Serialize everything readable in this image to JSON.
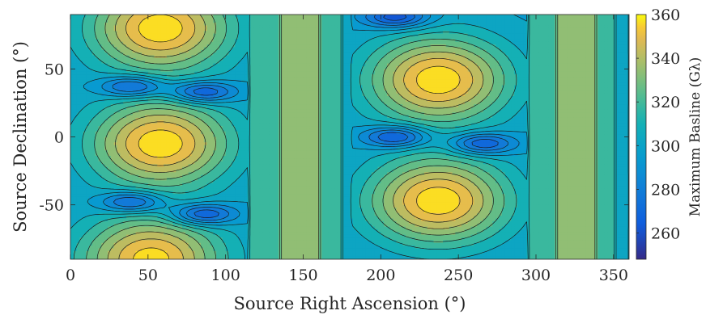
{
  "chart_data": {
    "type": "contour",
    "title": "",
    "xlabel": "Source Right Ascension (°)",
    "ylabel": "Source Declination (°)",
    "colorbar_label": "Maximum Basline (Gλ)",
    "xlim": [
      0,
      360
    ],
    "ylim": [
      -90,
      90
    ],
    "xticks": [
      0,
      50,
      100,
      150,
      200,
      250,
      300,
      350
    ],
    "yticks": [
      -50,
      0,
      50
    ],
    "colorbar_range": [
      248,
      360
    ],
    "colorbar_ticks": [
      260,
      280,
      300,
      320,
      340,
      360
    ],
    "colormap": "parula",
    "contour_levels": [
      258,
      266,
      274,
      282,
      290,
      298,
      306,
      314,
      322,
      330,
      338,
      346,
      354
    ],
    "bands_by_ra": [
      {
        "ra": [
          115,
          135
        ],
        "value": 316
      },
      {
        "ra": [
          135,
          162
        ],
        "value": 330
      },
      {
        "ra": [
          162,
          175
        ],
        "value": 316
      },
      {
        "ra": [
          175,
          181
        ],
        "value": 304
      },
      {
        "ra": [
          295,
          313
        ],
        "value": 316
      },
      {
        "ra": [
          313,
          340
        ],
        "value": 330
      },
      {
        "ra": [
          340,
          352
        ],
        "value": 316
      },
      {
        "ra": [
          352,
          360
        ],
        "value": 304
      }
    ],
    "maxima": [
      {
        "ra": 58,
        "dec": 80,
        "value": 360
      },
      {
        "ra": 58,
        "dec": -5,
        "value": 360
      },
      {
        "ra": 52,
        "dec": -90,
        "value": 358
      },
      {
        "ra": 237,
        "dec": 42,
        "value": 360
      },
      {
        "ra": 237,
        "dec": -47,
        "value": 360
      }
    ],
    "minima": [
      {
        "ra": 40,
        "dec": 37,
        "value": 256
      },
      {
        "ra": 85,
        "dec": 33,
        "value": 254
      },
      {
        "ra": 40,
        "dec": -48,
        "value": 256
      },
      {
        "ra": 85,
        "dec": -57,
        "value": 254
      },
      {
        "ra": 210,
        "dec": 88,
        "value": 256
      },
      {
        "ra": 210,
        "dec": 0,
        "value": 254
      },
      {
        "ra": 265,
        "dec": -5,
        "value": 256
      }
    ]
  }
}
